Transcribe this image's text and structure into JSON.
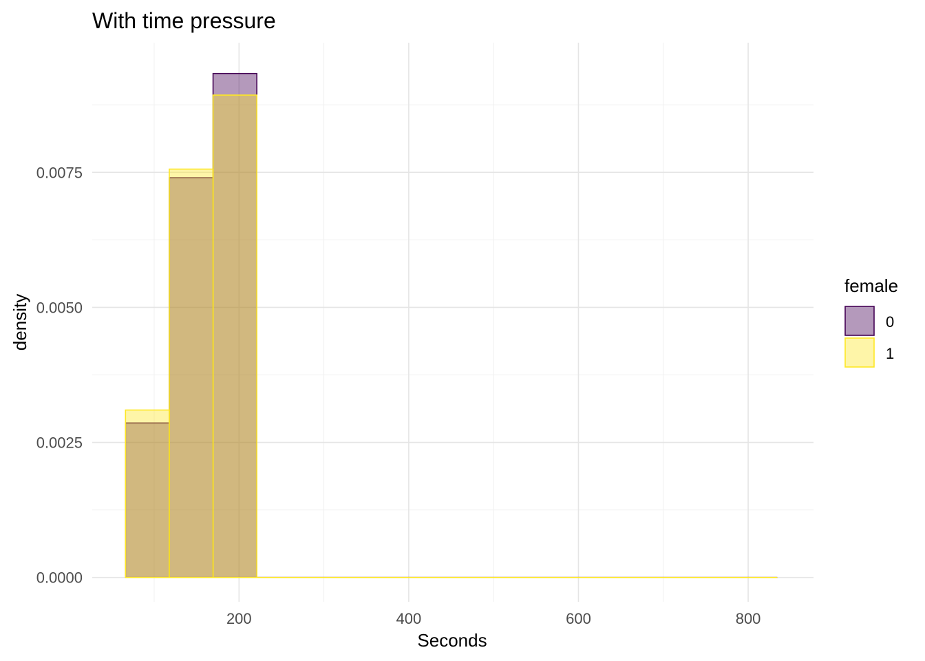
{
  "chart_data": {
    "type": "histogram",
    "title": "With time pressure",
    "xlabel": "Seconds",
    "ylabel": "density",
    "xlim": [
      27,
      877
    ],
    "ylim": [
      -0.00045,
      0.0099
    ],
    "x_ticks": [
      200,
      400,
      600,
      800
    ],
    "x_tick_labels": [
      "200",
      "400",
      "600",
      "800"
    ],
    "y_ticks": [
      0,
      0.0025,
      0.005,
      0.0075
    ],
    "y_tick_labels": [
      "0.0000",
      "0.0025",
      "0.0050",
      "0.0075"
    ],
    "grid": true,
    "bin_width": 51.6,
    "bin_start": 66.2,
    "bin_end": 834.3,
    "legend": {
      "title": "female",
      "position": "right"
    },
    "series": [
      {
        "name": "0",
        "fill": "#440154",
        "fill_opacity": 0.4,
        "stroke": "#440154",
        "bins": [
          {
            "x0": 66.2,
            "x1": 117.8,
            "density": 0.00286
          },
          {
            "x0": 117.8,
            "x1": 169.4,
            "density": 0.0074
          },
          {
            "x0": 169.4,
            "x1": 221.0,
            "density": 0.00933
          }
        ]
      },
      {
        "name": "1",
        "fill": "#FDE725",
        "fill_opacity": 0.4,
        "stroke": "#FDE725",
        "bins": [
          {
            "x0": 66.2,
            "x1": 117.8,
            "density": 0.0031
          },
          {
            "x0": 117.8,
            "x1": 169.4,
            "density": 0.00756
          },
          {
            "x0": 169.4,
            "x1": 221.0,
            "density": 0.00893
          }
        ]
      }
    ]
  }
}
